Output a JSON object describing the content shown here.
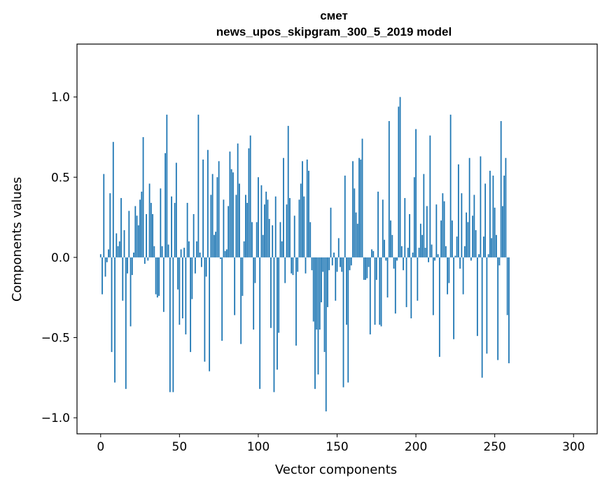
{
  "chart_data": {
    "type": "bar",
    "title_line1": "смет",
    "title_line2": "news_upos_skipgram_300_5_2019 model",
    "xlabel": "Vector components",
    "ylabel": "Components values",
    "xlim": [
      -15,
      315
    ],
    "ylim": [
      -1.1,
      1.33
    ],
    "xticks": [
      0,
      50,
      100,
      150,
      200,
      250,
      300
    ],
    "xtick_labels": [
      "0",
      "50",
      "100",
      "150",
      "200",
      "250",
      "300"
    ],
    "yticks": [
      -1.0,
      -0.5,
      0.0,
      0.5,
      1.0
    ],
    "ytick_labels": [
      "−1.0",
      "−0.5",
      "0.0",
      "0.5",
      "1.0"
    ],
    "bar_color": "#1f77b4",
    "values": [
      0.02,
      -0.23,
      0.52,
      -0.12,
      -0.03,
      0.05,
      0.4,
      -0.59,
      0.72,
      -0.78,
      0.15,
      0.07,
      0.1,
      0.37,
      -0.27,
      0.17,
      -0.82,
      -0.1,
      0.29,
      -0.43,
      -0.11,
      0.03,
      0.32,
      0.26,
      0.2,
      0.36,
      0.41,
      0.75,
      -0.04,
      0.27,
      -0.02,
      0.46,
      0.34,
      0.27,
      0.07,
      -0.23,
      -0.25,
      -0.24,
      0.43,
      0.07,
      -0.34,
      0.65,
      0.89,
      0.08,
      -0.84,
      0.38,
      -0.84,
      0.34,
      0.59,
      -0.2,
      -0.42,
      0.05,
      -0.38,
      0.06,
      -0.48,
      0.34,
      0.1,
      -0.59,
      -0.26,
      0.27,
      -0.1,
      0.1,
      0.89,
      0.03,
      -0.06,
      0.61,
      -0.65,
      -0.12,
      0.67,
      -0.71,
      0.39,
      0.52,
      0.14,
      0.16,
      0.5,
      0.6,
      -0.01,
      -0.52,
      0.36,
      0.04,
      0.05,
      0.32,
      0.66,
      0.55,
      0.53,
      -0.36,
      0.39,
      0.71,
      0.46,
      -0.54,
      -0.24,
      0.1,
      0.39,
      0.34,
      0.68,
      0.76,
      0.22,
      -0.45,
      -0.16,
      0.22,
      0.5,
      -0.82,
      0.45,
      0.14,
      0.33,
      0.41,
      0.36,
      0.24,
      -0.44,
      0.2,
      -0.84,
      0.38,
      -0.7,
      -0.47,
      0.22,
      0.1,
      0.62,
      -0.16,
      0.33,
      0.82,
      0.37,
      -0.1,
      -0.11,
      0.26,
      -0.55,
      -0.09,
      0.36,
      0.46,
      0.6,
      0.38,
      -0.1,
      0.61,
      0.54,
      0.22,
      -0.08,
      -0.4,
      -0.82,
      -0.45,
      -0.73,
      -0.45,
      -0.28,
      -0.09,
      -0.59,
      -0.96,
      -0.31,
      -0.08,
      0.31,
      -0.05,
      0.03,
      -0.27,
      -0.09,
      0.12,
      -0.06,
      -0.09,
      -0.81,
      0.51,
      -0.42,
      -0.78,
      -0.08,
      -0.05,
      0.6,
      0.43,
      0.28,
      0.21,
      0.62,
      0.61,
      0.74,
      -0.14,
      -0.14,
      -0.13,
      -0.06,
      -0.48,
      0.05,
      0.04,
      -0.42,
      -0.14,
      0.41,
      -0.42,
      -0.43,
      0.36,
      0.11,
      -0.02,
      -0.25,
      0.85,
      0.23,
      0.14,
      -0.07,
      -0.35,
      -0.02,
      0.94,
      1.0,
      0.07,
      -0.08,
      0.37,
      -0.31,
      0.06,
      0.27,
      -0.38,
      0.03,
      0.5,
      0.8,
      -0.27,
      0.06,
      0.21,
      0.14,
      0.52,
      0.06,
      0.32,
      -0.03,
      0.76,
      0.08,
      -0.36,
      -0.02,
      0.33,
      0.02,
      -0.62,
      0.23,
      0.4,
      0.35,
      0.07,
      -0.23,
      -0.16,
      0.89,
      0.23,
      -0.51,
      0.01,
      0.13,
      0.58,
      -0.07,
      0.4,
      -0.23,
      0.07,
      0.28,
      0.22,
      0.62,
      -0.02,
      0.26,
      0.39,
      0.17,
      -0.49,
      0.02,
      0.63,
      -0.75,
      0.13,
      0.46,
      -0.6,
      0.02,
      0.54,
      0.12,
      0.51,
      0.31,
      0.14,
      -0.64,
      -0.05,
      0.85,
      0.32,
      0.51,
      0.62,
      -0.36,
      -0.66
    ]
  }
}
